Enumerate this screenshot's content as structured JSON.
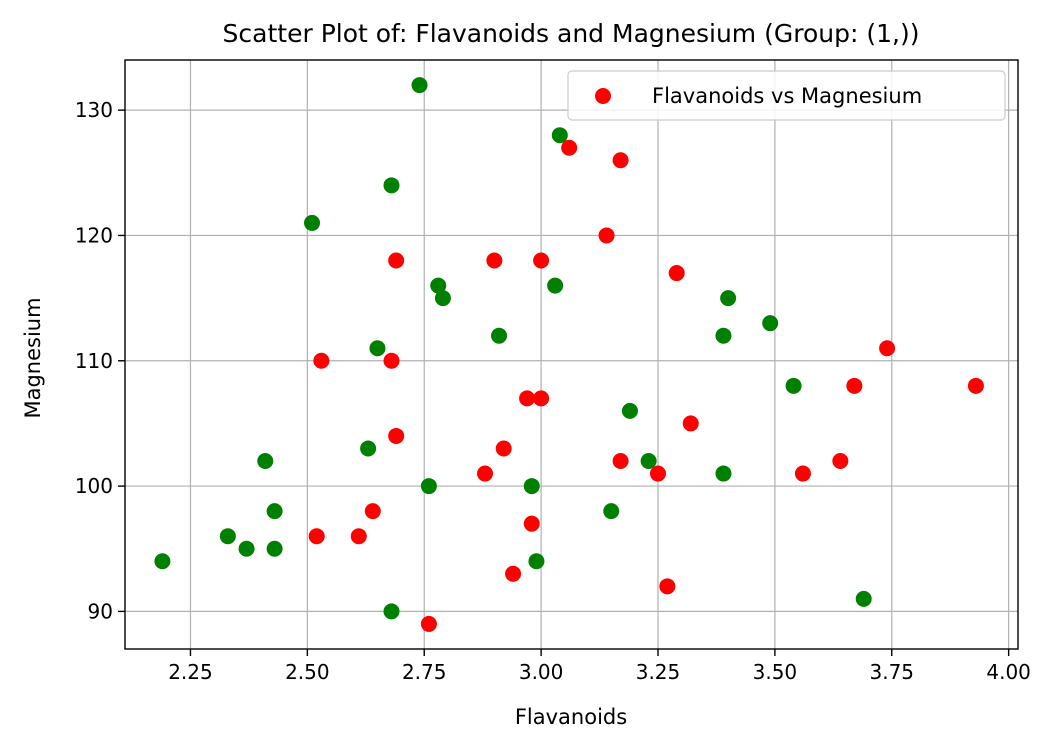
{
  "chart_data": {
    "type": "scatter",
    "title": "Scatter Plot of: Flavanoids and Magnesium (Group: (1,))",
    "xlabel": "Flavanoids",
    "ylabel": "Magnesium",
    "xlim": [
      2.11,
      4.02
    ],
    "ylim": [
      87,
      134
    ],
    "xticks": [
      2.25,
      2.5,
      2.75,
      3.0,
      3.25,
      3.5,
      3.75,
      4.0
    ],
    "xtick_labels": [
      "2.25",
      "2.50",
      "2.75",
      "3.00",
      "3.25",
      "3.50",
      "3.75",
      "4.00"
    ],
    "yticks": [
      90,
      100,
      110,
      120,
      130
    ],
    "ytick_labels": [
      "90",
      "100",
      "110",
      "120",
      "130"
    ],
    "grid": true,
    "legend": {
      "position": "top-right",
      "entries": [
        "Flavanoids vs Magnesium"
      ]
    },
    "colors": {
      "red": "#ff0000",
      "green": "#008000"
    },
    "series": [
      {
        "name": "Flavanoids vs Magnesium",
        "color": "#ff0000",
        "points": [
          [
            3.06,
            127
          ],
          [
            3.17,
            126
          ],
          [
            3.14,
            120
          ],
          [
            2.69,
            118
          ],
          [
            2.9,
            118
          ],
          [
            3.0,
            118
          ],
          [
            3.29,
            117
          ],
          [
            2.53,
            110
          ],
          [
            2.68,
            110
          ],
          [
            3.74,
            111
          ],
          [
            2.97,
            107
          ],
          [
            3.0,
            107
          ],
          [
            3.67,
            108
          ],
          [
            3.93,
            108
          ],
          [
            3.32,
            105
          ],
          [
            2.69,
            104
          ],
          [
            2.92,
            103
          ],
          [
            2.88,
            101
          ],
          [
            3.17,
            102
          ],
          [
            3.25,
            101
          ],
          [
            3.56,
            101
          ],
          [
            3.64,
            102
          ],
          [
            2.52,
            96
          ],
          [
            2.61,
            96
          ],
          [
            2.64,
            98
          ],
          [
            2.98,
            97
          ],
          [
            2.94,
            93
          ],
          [
            3.27,
            92
          ],
          [
            2.76,
            89
          ]
        ]
      },
      {
        "color": "#008000",
        "points": [
          [
            2.74,
            132
          ],
          [
            3.04,
            128
          ],
          [
            2.68,
            124
          ],
          [
            2.51,
            121
          ],
          [
            2.78,
            116
          ],
          [
            2.79,
            115
          ],
          [
            3.03,
            116
          ],
          [
            2.91,
            112
          ],
          [
            3.4,
            115
          ],
          [
            3.39,
            112
          ],
          [
            3.49,
            113
          ],
          [
            2.65,
            111
          ],
          [
            3.54,
            108
          ],
          [
            3.19,
            106
          ],
          [
            2.63,
            103
          ],
          [
            2.41,
            102
          ],
          [
            3.23,
            102
          ],
          [
            2.76,
            100
          ],
          [
            2.98,
            100
          ],
          [
            3.39,
            101
          ],
          [
            2.43,
            98
          ],
          [
            3.15,
            98
          ],
          [
            2.33,
            96
          ],
          [
            2.37,
            95
          ],
          [
            2.43,
            95
          ],
          [
            2.19,
            94
          ],
          [
            2.99,
            94
          ],
          [
            2.68,
            90
          ],
          [
            3.69,
            91
          ]
        ]
      }
    ]
  }
}
